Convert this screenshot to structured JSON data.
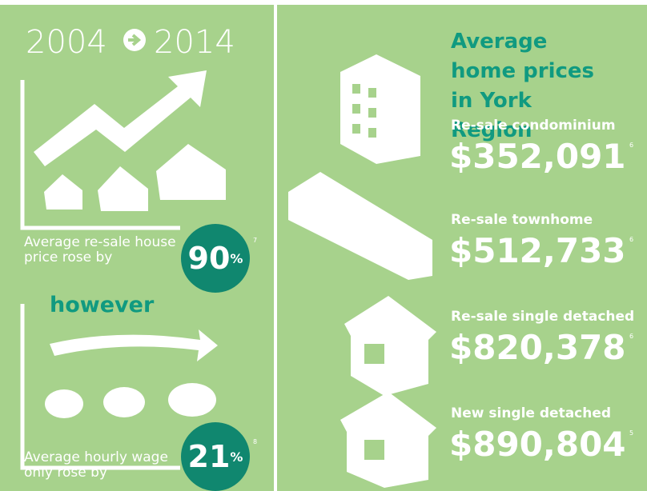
{
  "header": {
    "year_from": "2004",
    "year_to": "2014"
  },
  "stats": [
    {
      "label": "Average re-sale house price rose by",
      "value": "90",
      "unit": "%",
      "note": "7"
    },
    {
      "label": "Average hourly wage only rose by",
      "value": "21",
      "unit": "%",
      "note": "8"
    }
  ],
  "connector": "however",
  "prices": {
    "title": "Average home prices in York Region",
    "items": [
      {
        "label": "Re-sale condominium",
        "price": "$352,091",
        "note": "6"
      },
      {
        "label": "Re-sale townhome",
        "price": "$512,733",
        "note": "6"
      },
      {
        "label": "Re-sale single detached",
        "price": "$820,378",
        "note": "6"
      },
      {
        "label": "New single detached",
        "price": "$890,804",
        "note": "5"
      }
    ]
  }
}
